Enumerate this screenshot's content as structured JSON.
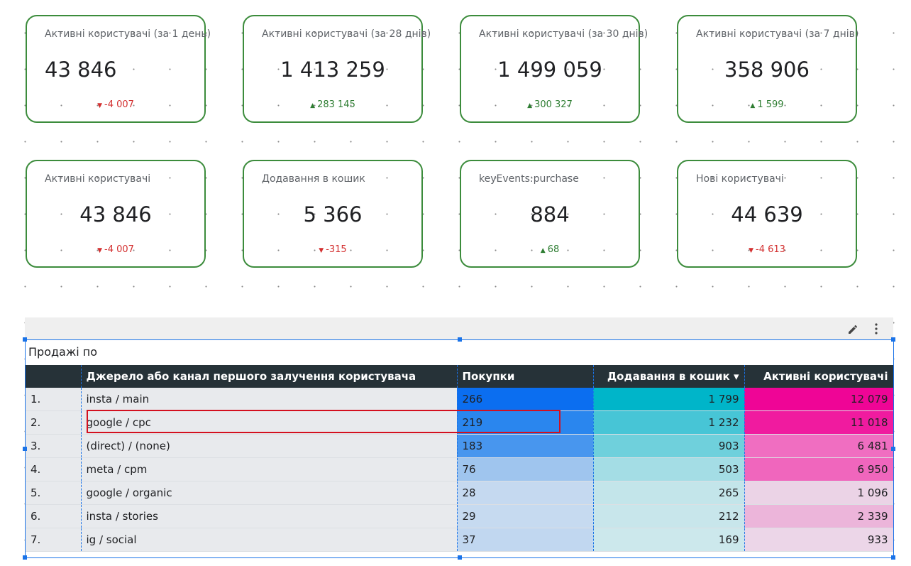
{
  "scorecards": [
    {
      "label": "Активні користувачі (за 1 день)",
      "value": "43 846",
      "delta": "-4 007",
      "trend": "down",
      "align": "left"
    },
    {
      "label": "Активні користувачі (за 28 днів)",
      "value": "1 413 259",
      "delta": "283 145",
      "trend": "up",
      "align": "center"
    },
    {
      "label": "Активні користувачі (за 30 днів)",
      "value": "1 499 059",
      "delta": "300 327",
      "trend": "up",
      "align": "center"
    },
    {
      "label": "Активні користувачі (за 7 днів)",
      "value": "358 906",
      "delta": "1 599",
      "trend": "up",
      "align": "center"
    },
    {
      "label": "Активні користувачі",
      "value": "43 846",
      "delta": "-4 007",
      "trend": "down",
      "align": "center"
    },
    {
      "label": "Додавання в кошик",
      "value": "5 366",
      "delta": "-315",
      "trend": "down",
      "align": "center"
    },
    {
      "label": "keyEvents:purchase",
      "value": "884",
      "delta": "68",
      "trend": "up",
      "align": "center"
    },
    {
      "label": "Нові користувачі",
      "value": "44 639",
      "delta": "-4 613",
      "trend": "down",
      "align": "center"
    }
  ],
  "table": {
    "title": "Продажі по",
    "columns": [
      "Джерело або канал першого залучення користувача",
      "Покупки",
      "Додавання в кошик",
      "Активні користувачі"
    ],
    "rows": [
      [
        "1.",
        "insta / main",
        "266",
        "1 799",
        "12 079"
      ],
      [
        "2.",
        "google / cpc",
        "219",
        "1 232",
        "11 018"
      ],
      [
        "3.",
        "(direct) / (none)",
        "183",
        "903",
        "6 481"
      ],
      [
        "4.",
        "meta / cpm",
        "76",
        "503",
        "6 950"
      ],
      [
        "5.",
        "google / organic",
        "28",
        "265",
        "1 096"
      ],
      [
        "6.",
        "insta / stories",
        "29",
        "212",
        "2 339"
      ],
      [
        "7.",
        "ig / social",
        "37",
        "169",
        "933"
      ]
    ]
  }
}
